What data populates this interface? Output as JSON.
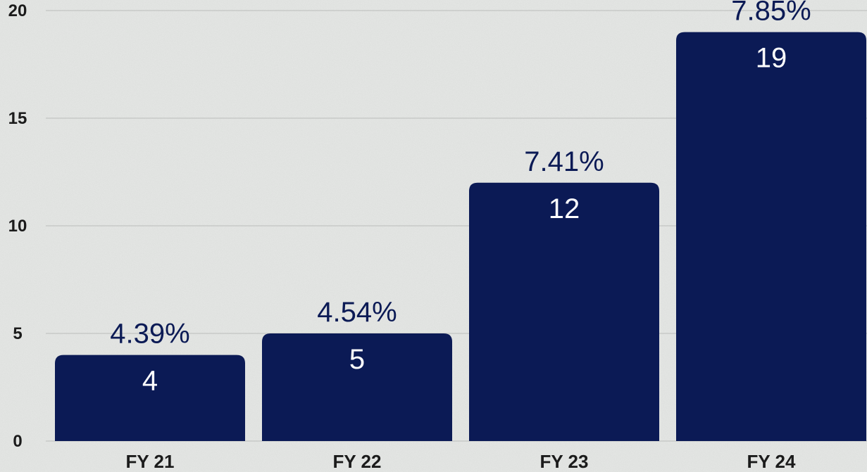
{
  "chart_data": {
    "type": "bar",
    "categories": [
      "FY 21",
      "FY 22",
      "FY 23",
      "FY 24"
    ],
    "values": [
      4,
      5,
      12,
      19
    ],
    "value_labels": [
      "4",
      "5",
      "12",
      "19"
    ],
    "annotations": [
      "4.39%",
      "4.54%",
      "7.41%",
      "7.85%"
    ],
    "yticks": [
      "0",
      "5",
      "10",
      "15",
      "20"
    ],
    "ylim": [
      0,
      20
    ],
    "grid": true,
    "legend": "none",
    "title": "",
    "xlabel": "",
    "ylabel": ""
  },
  "colors": {
    "bar": "#0b1a55",
    "annotation": "#0b1a55",
    "value_label": "#ffffff",
    "axis_text": "#1b1b1b",
    "grid": "#c7c9c7",
    "background": "#e6e8e6"
  }
}
